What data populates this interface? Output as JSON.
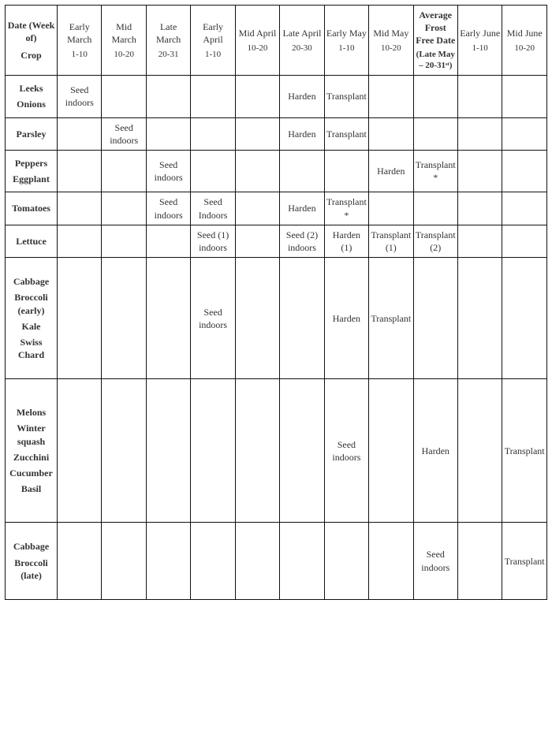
{
  "header": {
    "corner_date_label": "Date (Week of)",
    "corner_crop_label": "Crop",
    "periods": [
      {
        "name": "Early March",
        "range": "1-10"
      },
      {
        "name": "Mid March",
        "range": "10-20"
      },
      {
        "name": "Late March",
        "range": "20-31"
      },
      {
        "name": "Early April",
        "range": "1-10"
      },
      {
        "name": "Mid April",
        "range": "10-20"
      },
      {
        "name": "Late April",
        "range": "20-30"
      },
      {
        "name": "Early May",
        "range": "1-10"
      },
      {
        "name": "Mid May",
        "range": "10-20"
      },
      {
        "name": "Average Frost Free Date",
        "range": "(Late May – 20-31ˢᵗ)",
        "frost": true
      },
      {
        "name": "Early June",
        "range": "1-10"
      },
      {
        "name": "Mid June",
        "range": "10-20"
      }
    ]
  },
  "rows": [
    {
      "crops": [
        "Leeks",
        "Onions"
      ],
      "cells": [
        "Seed indoors",
        "",
        "",
        "",
        "",
        "Harden",
        "Transplant",
        "",
        "",
        "",
        ""
      ]
    },
    {
      "crops": [
        "Parsley"
      ],
      "cells": [
        "",
        "Seed indoors",
        "",
        "",
        "",
        "Harden",
        "Transplant",
        "",
        "",
        "",
        ""
      ]
    },
    {
      "crops": [
        "Peppers",
        "Eggplant"
      ],
      "cells": [
        "",
        "",
        "Seed indoors",
        "",
        "",
        "",
        "",
        "Harden",
        "Transplant*",
        "",
        ""
      ]
    },
    {
      "crops": [
        "Tomatoes"
      ],
      "cells": [
        "",
        "",
        "Seed indoors",
        "Seed Indoors",
        "",
        "Harden",
        "Transplant*",
        "",
        "",
        "",
        ""
      ]
    },
    {
      "crops": [
        "Lettuce"
      ],
      "cells": [
        "",
        "",
        "",
        "Seed (1) indoors",
        "",
        "Seed (2) indoors",
        "Harden (1)",
        "Transplant (1)",
        "Transplant (2)",
        "",
        ""
      ]
    },
    {
      "crops": [
        "Cabbage",
        "Broccoli (early)",
        "Kale",
        "Swiss Chard"
      ],
      "cells": [
        "",
        "",
        "",
        "Seed indoors",
        "",
        "",
        "Harden",
        "Transplant",
        "",
        "",
        ""
      ],
      "tall": true
    },
    {
      "crops": [
        "Melons",
        "Winter squash",
        "Zucchini",
        "Cucumber",
        "Basil"
      ],
      "cells": [
        "",
        "",
        "",
        "",
        "",
        "",
        "Seed indoors",
        "",
        "Harden",
        "",
        "Transplant"
      ],
      "xtall": true
    },
    {
      "crops": [
        "Cabbage",
        "Broccoli (late)"
      ],
      "cells": [
        "",
        "",
        "",
        "",
        "",
        "",
        "",
        "",
        "Seed indoors",
        "",
        "Transplant"
      ],
      "tall": true
    }
  ]
}
